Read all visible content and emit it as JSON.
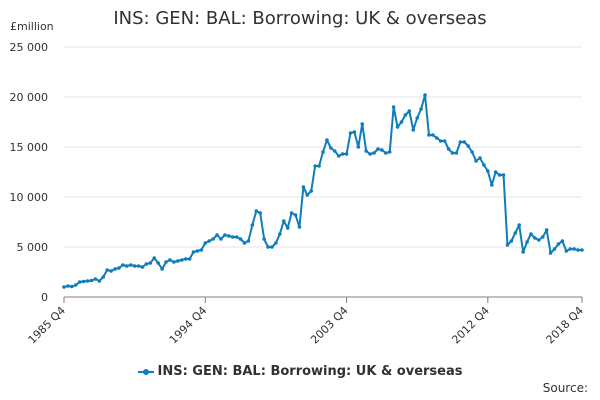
{
  "chart_data": {
    "type": "line",
    "title": "INS: GEN: BAL: Borrowing: UK & overseas",
    "y_unit": "£million",
    "ylim": [
      0,
      25000
    ],
    "y_ticks": [
      0,
      5000,
      10000,
      15000,
      20000,
      25000
    ],
    "y_tick_labels": [
      "0",
      "5 000",
      "10 000",
      "15 000",
      "20 000",
      "25 000"
    ],
    "x_tick_labels": [
      "1985 Q4",
      "1994 Q4",
      "2003 Q4",
      "2012 Q4",
      "2018 Q4"
    ],
    "x_tick_index": [
      0,
      36,
      72,
      108,
      132
    ],
    "grid": true,
    "legend_position": "bottom",
    "color": "#0f7dbb",
    "series": [
      {
        "name": "INS: GEN: BAL: Borrowing: UK & overseas",
        "values": [
          1000,
          1100,
          1050,
          1200,
          1500,
          1550,
          1600,
          1650,
          1800,
          1600,
          2000,
          2700,
          2600,
          2800,
          2900,
          3200,
          3100,
          3200,
          3100,
          3100,
          3000,
          3300,
          3400,
          3900,
          3400,
          2800,
          3500,
          3700,
          3500,
          3600,
          3700,
          3800,
          3800,
          4500,
          4600,
          4700,
          5400,
          5600,
          5800,
          6200,
          5800,
          6200,
          6100,
          6000,
          6000,
          5800,
          5400,
          5600,
          7200,
          8600,
          8400,
          5800,
          5000,
          5000,
          5400,
          6300,
          7600,
          6900,
          8400,
          8200,
          7000,
          11000,
          10200,
          10600,
          13100,
          13100,
          14500,
          15700,
          14900,
          14600,
          14100,
          14300,
          14300,
          16400,
          16500,
          15000,
          17300,
          14600,
          14300,
          14400,
          14800,
          14700,
          14400,
          14500,
          19000,
          17000,
          17500,
          18200,
          18600,
          16700,
          17900,
          18800,
          20200,
          16200,
          16200,
          15900,
          15600,
          15600,
          14800,
          14400,
          14400,
          15500,
          15500,
          15100,
          14500,
          13600,
          13900,
          13200,
          12600,
          11200,
          12500,
          12200,
          12200,
          5200,
          5600,
          6400,
          7200,
          4500,
          5500,
          6300,
          5900,
          5700,
          6000,
          6700,
          4400,
          4800,
          5300,
          5600,
          4600,
          4800,
          4800,
          4700,
          4700
        ]
      }
    ]
  },
  "source_label": "Source:"
}
